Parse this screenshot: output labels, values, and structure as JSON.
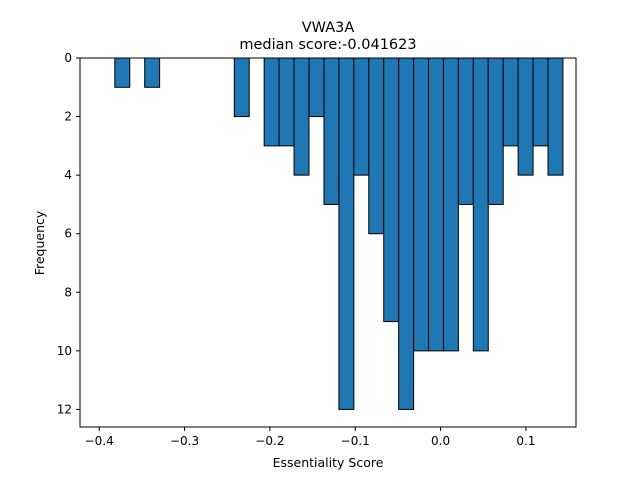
{
  "chart_data": {
    "type": "bar",
    "title": "VWA3A",
    "subtitle": "median score:-0.041623",
    "xlabel": "Essentiality Score",
    "ylabel": "Frequency",
    "xlim": [
      -0.4225,
      0.1587
    ],
    "ylim": [
      0,
      12.6
    ],
    "y_inverted": true,
    "bin_width": 0.0175,
    "bins": [
      {
        "x": -0.3817,
        "count": 1
      },
      {
        "x": -0.3467,
        "count": 1
      },
      {
        "x": -0.2417,
        "count": 2
      },
      {
        "x": -0.2067,
        "count": 3
      },
      {
        "x": -0.1892,
        "count": 3
      },
      {
        "x": -0.1717,
        "count": 4
      },
      {
        "x": -0.1541,
        "count": 2
      },
      {
        "x": -0.1366,
        "count": 5
      },
      {
        "x": -0.1191,
        "count": 12
      },
      {
        "x": -0.1016,
        "count": 4
      },
      {
        "x": -0.0841,
        "count": 6
      },
      {
        "x": -0.0666,
        "count": 9
      },
      {
        "x": -0.0491,
        "count": 12
      },
      {
        "x": -0.0316,
        "count": 10
      },
      {
        "x": -0.0141,
        "count": 10
      },
      {
        "x": 0.0034,
        "count": 10
      },
      {
        "x": 0.0209,
        "count": 5
      },
      {
        "x": 0.0384,
        "count": 10
      },
      {
        "x": 0.0559,
        "count": 5
      },
      {
        "x": 0.0734,
        "count": 3
      },
      {
        "x": 0.0909,
        "count": 4
      },
      {
        "x": 0.1084,
        "count": 3
      },
      {
        "x": 0.1259,
        "count": 4
      }
    ],
    "x_ticks": [
      -0.4,
      -0.3,
      -0.2,
      -0.1,
      0.0,
      0.1
    ],
    "x_tick_labels": [
      "−0.4",
      "−0.3",
      "−0.2",
      "−0.1",
      "0.0",
      "0.1"
    ],
    "y_ticks": [
      0,
      2,
      4,
      6,
      8,
      10,
      12
    ],
    "y_tick_labels": [
      "0",
      "2",
      "4",
      "6",
      "8",
      "10",
      "12"
    ],
    "grid": false,
    "colors": {
      "bar_fill": "#1f77b4",
      "bar_edge": "#000000"
    }
  }
}
